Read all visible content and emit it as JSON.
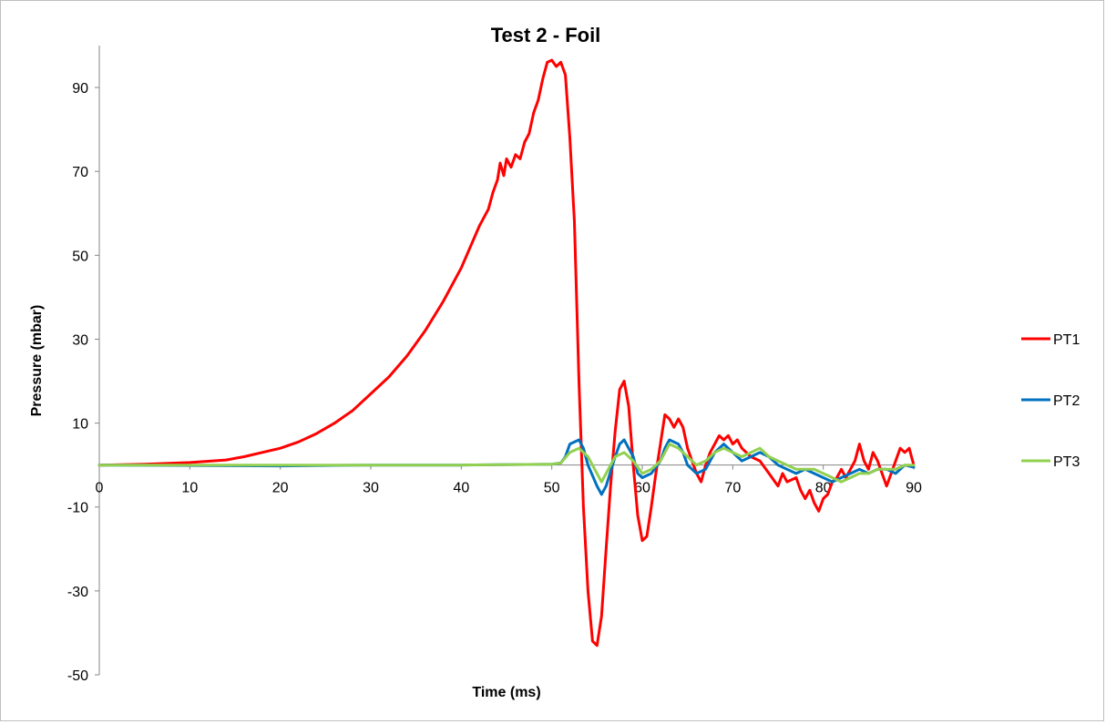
{
  "chart_data": {
    "type": "line",
    "title": "Test 2 - Foil",
    "xlabel": "Time (ms)",
    "ylabel": "Pressure (mbar)",
    "xlim": [
      0,
      90
    ],
    "ylim": [
      -50,
      100
    ],
    "x_ticks": [
      0,
      10,
      20,
      30,
      40,
      50,
      60,
      70,
      80,
      90
    ],
    "y_ticks": [
      -50,
      -30,
      -10,
      10,
      30,
      50,
      70,
      90
    ],
    "grid": false,
    "legend_position": "right",
    "series": [
      {
        "name": "PT1",
        "color": "#ff0000",
        "points": [
          [
            0,
            0
          ],
          [
            5,
            0.2
          ],
          [
            10,
            0.6
          ],
          [
            14,
            1.2
          ],
          [
            16,
            2
          ],
          [
            18,
            3
          ],
          [
            20,
            4
          ],
          [
            22,
            5.5
          ],
          [
            24,
            7.5
          ],
          [
            26,
            10
          ],
          [
            28,
            13
          ],
          [
            30,
            17
          ],
          [
            32,
            21
          ],
          [
            34,
            26
          ],
          [
            36,
            32
          ],
          [
            38,
            39
          ],
          [
            40,
            47
          ],
          [
            42,
            57
          ],
          [
            43,
            61
          ],
          [
            43.5,
            65
          ],
          [
            44,
            68
          ],
          [
            44.3,
            72
          ],
          [
            44.7,
            69
          ],
          [
            45,
            73
          ],
          [
            45.5,
            71
          ],
          [
            46,
            74
          ],
          [
            46.5,
            73
          ],
          [
            47,
            77
          ],
          [
            47.5,
            79
          ],
          [
            48,
            84
          ],
          [
            48.5,
            87
          ],
          [
            49,
            92
          ],
          [
            49.5,
            96
          ],
          [
            50,
            96.5
          ],
          [
            50.5,
            95
          ],
          [
            51,
            96
          ],
          [
            51.5,
            93
          ],
          [
            52,
            78
          ],
          [
            52.5,
            58
          ],
          [
            53,
            20
          ],
          [
            53.5,
            -10
          ],
          [
            54,
            -30
          ],
          [
            54.5,
            -42
          ],
          [
            55,
            -43
          ],
          [
            55.5,
            -36
          ],
          [
            56,
            -20
          ],
          [
            56.5,
            -5
          ],
          [
            57,
            8
          ],
          [
            57.5,
            18
          ],
          [
            58,
            20
          ],
          [
            58.5,
            14
          ],
          [
            59,
            0
          ],
          [
            59.5,
            -12
          ],
          [
            60,
            -18
          ],
          [
            60.5,
            -17
          ],
          [
            61,
            -10
          ],
          [
            61.5,
            -2
          ],
          [
            62,
            5
          ],
          [
            62.5,
            12
          ],
          [
            63,
            11
          ],
          [
            63.5,
            9
          ],
          [
            64,
            11
          ],
          [
            64.5,
            9
          ],
          [
            65,
            4
          ],
          [
            65.5,
            1
          ],
          [
            66,
            -2
          ],
          [
            66.5,
            -4
          ],
          [
            67,
            0
          ],
          [
            67.5,
            3
          ],
          [
            68,
            5
          ],
          [
            68.5,
            7
          ],
          [
            69,
            6
          ],
          [
            69.5,
            7
          ],
          [
            70,
            5
          ],
          [
            70.5,
            6
          ],
          [
            71,
            4
          ],
          [
            71.5,
            3
          ],
          [
            72,
            2
          ],
          [
            73,
            1
          ],
          [
            74,
            -2
          ],
          [
            75,
            -5
          ],
          [
            75.5,
            -2
          ],
          [
            76,
            -4
          ],
          [
            77,
            -3
          ],
          [
            77.5,
            -6
          ],
          [
            78,
            -8
          ],
          [
            78.5,
            -6
          ],
          [
            79,
            -9
          ],
          [
            79.5,
            -11
          ],
          [
            80,
            -8
          ],
          [
            80.5,
            -7
          ],
          [
            81,
            -4
          ],
          [
            81.5,
            -3
          ],
          [
            82,
            -1
          ],
          [
            82.5,
            -3
          ],
          [
            83,
            -1
          ],
          [
            83.5,
            1
          ],
          [
            84,
            5
          ],
          [
            84.5,
            1
          ],
          [
            85,
            -1
          ],
          [
            85.5,
            3
          ],
          [
            86,
            1
          ],
          [
            86.5,
            -2
          ],
          [
            87,
            -5
          ],
          [
            87.5,
            -2
          ],
          [
            88,
            1
          ],
          [
            88.5,
            4
          ],
          [
            89,
            3
          ],
          [
            89.5,
            4
          ],
          [
            90,
            0
          ]
        ]
      },
      {
        "name": "PT2",
        "color": "#0070c0",
        "points": [
          [
            0,
            0
          ],
          [
            10,
            -0.1
          ],
          [
            20,
            -0.2
          ],
          [
            30,
            0
          ],
          [
            40,
            0
          ],
          [
            50,
            0.2
          ],
          [
            51,
            0.5
          ],
          [
            51.5,
            2
          ],
          [
            52,
            5
          ],
          [
            53,
            6
          ],
          [
            53.5,
            4
          ],
          [
            54,
            0
          ],
          [
            55,
            -5
          ],
          [
            55.5,
            -7
          ],
          [
            56,
            -5
          ],
          [
            57,
            2
          ],
          [
            57.5,
            5
          ],
          [
            58,
            6
          ],
          [
            59,
            2
          ],
          [
            59.5,
            -2
          ],
          [
            60,
            -3
          ],
          [
            61,
            -2
          ],
          [
            62,
            1
          ],
          [
            62.5,
            4
          ],
          [
            63,
            6
          ],
          [
            64,
            5
          ],
          [
            64.5,
            3
          ],
          [
            65,
            0
          ],
          [
            66,
            -2
          ],
          [
            67,
            -1
          ],
          [
            68,
            3
          ],
          [
            69,
            5
          ],
          [
            70,
            3
          ],
          [
            71,
            1
          ],
          [
            72,
            2
          ],
          [
            73,
            3
          ],
          [
            74,
            2
          ],
          [
            75,
            0
          ],
          [
            76,
            -1
          ],
          [
            77,
            -2
          ],
          [
            78,
            -1
          ],
          [
            79,
            -2
          ],
          [
            80,
            -3
          ],
          [
            81,
            -4
          ],
          [
            82,
            -3
          ],
          [
            83,
            -2
          ],
          [
            84,
            -1
          ],
          [
            85,
            -2
          ],
          [
            86,
            -1
          ],
          [
            87,
            -1
          ],
          [
            88,
            -2
          ],
          [
            89,
            0
          ],
          [
            90,
            -0.5
          ]
        ]
      },
      {
        "name": "PT3",
        "color": "#92d050",
        "points": [
          [
            0,
            0
          ],
          [
            10,
            0
          ],
          [
            20,
            0
          ],
          [
            30,
            0
          ],
          [
            40,
            0
          ],
          [
            50,
            0.2
          ],
          [
            51,
            0.5
          ],
          [
            52,
            3
          ],
          [
            53,
            4
          ],
          [
            54,
            2
          ],
          [
            55,
            -2
          ],
          [
            55.5,
            -4
          ],
          [
            56,
            -2
          ],
          [
            57,
            2
          ],
          [
            58,
            3
          ],
          [
            59,
            1
          ],
          [
            60,
            -2
          ],
          [
            61,
            -1
          ],
          [
            62,
            1
          ],
          [
            63,
            5
          ],
          [
            64,
            4
          ],
          [
            65,
            2
          ],
          [
            66,
            0
          ],
          [
            67,
            1
          ],
          [
            68,
            3
          ],
          [
            69,
            4
          ],
          [
            70,
            3
          ],
          [
            71,
            2
          ],
          [
            72,
            3
          ],
          [
            73,
            4
          ],
          [
            74,
            2
          ],
          [
            75,
            1
          ],
          [
            76,
            0
          ],
          [
            77,
            -1
          ],
          [
            78,
            -1
          ],
          [
            79,
            -1
          ],
          [
            80,
            -2
          ],
          [
            81,
            -3
          ],
          [
            82,
            -4
          ],
          [
            83,
            -3
          ],
          [
            84,
            -2
          ],
          [
            85,
            -2
          ],
          [
            86,
            -1
          ],
          [
            87,
            -1
          ],
          [
            88,
            -1
          ],
          [
            89,
            0
          ],
          [
            90,
            0
          ]
        ]
      }
    ]
  }
}
